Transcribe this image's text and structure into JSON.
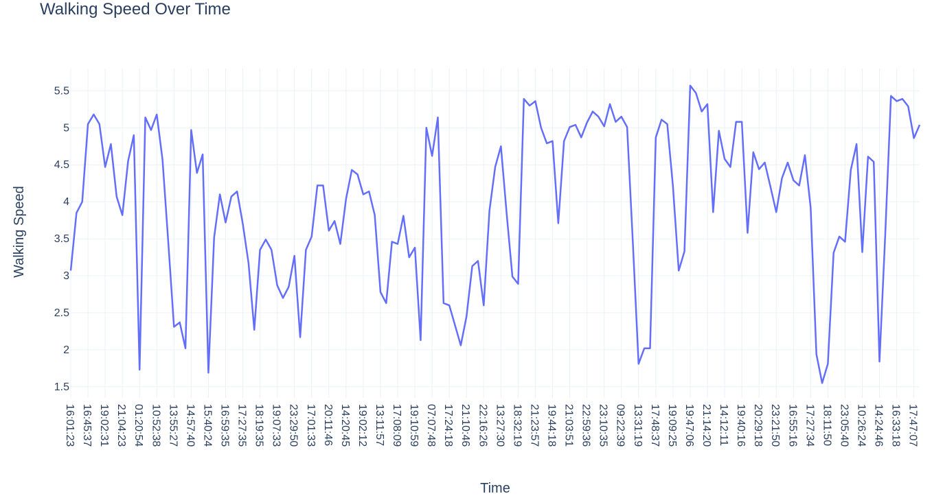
{
  "chart_data": {
    "type": "line",
    "title": "Walking Speed Over Time",
    "xlabel": "Time",
    "ylabel": "Walking Speed",
    "ylim": [
      1.35,
      5.8
    ],
    "yticks": [
      1.5,
      2,
      2.5,
      3,
      3.5,
      4,
      4.5,
      5,
      5.5
    ],
    "ytick_labels": [
      "1.5",
      "2",
      "2.5",
      "3",
      "3.5",
      "4",
      "4.5",
      "5",
      "5.5"
    ],
    "x_tick_labels": [
      "16:01:23",
      "16:45:37",
      "19:02:31",
      "21:04:23",
      "01:20:54",
      "10:52:38",
      "13:55:27",
      "14:57:40",
      "15:40:24",
      "16:59:35",
      "17:27:35",
      "18:19:35",
      "19:07:33",
      "23:29:50",
      "17:01:33",
      "20:11:46",
      "14:20:45",
      "19:02:12",
      "13:11:57",
      "17:08:09",
      "19:10:59",
      "07:07:48",
      "17:24:18",
      "21:10:46",
      "22:16:26",
      "13:27:30",
      "18:32:19",
      "21:23:57",
      "19:44:18",
      "21:03:51",
      "22:59:36",
      "23:10:35",
      "09:22:39",
      "13:31:19",
      "17:48:37",
      "19:09:25",
      "19:47:06",
      "21:14:20",
      "14:12:11",
      "19:40:16",
      "20:29:18",
      "23:21:50",
      "16:55:16",
      "17:27:34",
      "18:11:50",
      "23:05:40",
      "10:26:24",
      "14:24:46",
      "16:33:18",
      "17:47:07"
    ],
    "series": [
      {
        "values": [
          3.07,
          3.85,
          4.0,
          5.05,
          5.18,
          5.05,
          4.47,
          4.78,
          4.07,
          3.82,
          4.55,
          4.9,
          1.73,
          5.14,
          4.97,
          5.18,
          4.57,
          3.46,
          2.31,
          2.37,
          2.02,
          4.97,
          4.39,
          4.64,
          1.69,
          3.52,
          4.1,
          3.72,
          4.07,
          4.14,
          3.7,
          3.17,
          2.27,
          3.35,
          3.49,
          3.35,
          2.87,
          2.7,
          2.85,
          3.27,
          2.17,
          3.35,
          3.53,
          4.22,
          4.22,
          3.61,
          3.74,
          3.43,
          4.04,
          4.43,
          4.37,
          4.1,
          4.14,
          3.82,
          2.78,
          2.63,
          3.46,
          3.43,
          3.81,
          3.25,
          3.38,
          2.13,
          5.0,
          4.62,
          5.14,
          2.63,
          2.6,
          2.33,
          2.06,
          2.45,
          3.13,
          3.2,
          2.6,
          3.88,
          4.47,
          4.75,
          3.84,
          2.99,
          2.89,
          5.39,
          5.3,
          5.36,
          5.0,
          4.79,
          4.82,
          3.71,
          4.82,
          5.01,
          5.04,
          4.87,
          5.07,
          5.22,
          5.15,
          5.02,
          5.32,
          5.08,
          5.15,
          5.01,
          3.45,
          1.81,
          2.02,
          2.02,
          4.87,
          5.11,
          5.05,
          4.2,
          3.07,
          3.33,
          5.57,
          5.47,
          5.22,
          5.32,
          3.86,
          4.96,
          4.58,
          4.47,
          5.08,
          5.08,
          3.58,
          4.67,
          4.44,
          4.53,
          4.2,
          3.86,
          4.32,
          4.53,
          4.29,
          4.22,
          4.63,
          3.92,
          1.94,
          1.55,
          1.81,
          3.31,
          3.53,
          3.46,
          4.43,
          4.78,
          3.32,
          4.61,
          4.54,
          1.84,
          3.55,
          5.43,
          5.36,
          5.39,
          5.29,
          4.86,
          5.04
        ],
        "color": "#636efa"
      }
    ],
    "grid": true,
    "legend": "none"
  }
}
